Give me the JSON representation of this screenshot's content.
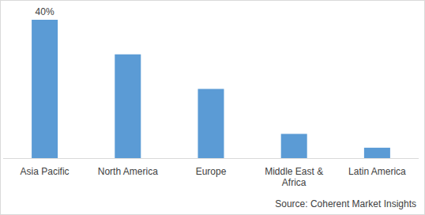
{
  "chart_data": {
    "type": "bar",
    "categories": [
      "Asia Pacific",
      "North America",
      "Europe",
      "Middle East & Africa",
      "Latin America"
    ],
    "values": [
      40,
      30,
      20,
      7,
      3
    ],
    "value_labels": [
      "40%",
      null,
      null,
      null,
      null
    ],
    "data_labels": true,
    "color": "#5b9bd5",
    "ylim": [
      0,
      40
    ],
    "tick_labels": "x",
    "source": "Source: Coherent Market Insights"
  }
}
